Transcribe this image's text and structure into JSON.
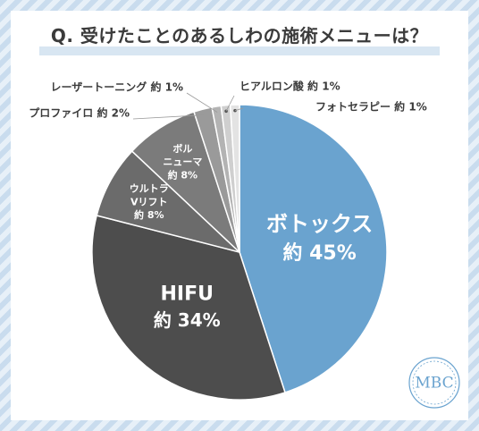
{
  "title": "Q. 受けたことのあるしわの施術メニューは？",
  "logo_text": "MBC",
  "colors": {
    "botox": "#6aa3cf",
    "hifu": "#4d4d4d",
    "ultra": "#6b6b6b",
    "bolnuma": "#7b7b7b",
    "profile": "#9a9a9a",
    "laser": "#b3b3b3",
    "hyaluron": "#cfcfcf",
    "photo": "#e3e3e3"
  },
  "chart_data": {
    "type": "pie",
    "start_angle_deg": 0,
    "direction": "clockwise",
    "slices": [
      {
        "key": "botox",
        "name": "ボトックス",
        "label_lines": [
          "ボトックス"
        ],
        "value": 45,
        "value_label": "約 45%",
        "label_position": "inside"
      },
      {
        "key": "hifu",
        "name": "HIFU",
        "label_lines": [
          "HIFU"
        ],
        "value": 34,
        "value_label": "約 34%",
        "label_position": "inside"
      },
      {
        "key": "ultra",
        "name": "ウルトラVリフト",
        "label_lines": [
          "ウルトラ",
          "Vリフト"
        ],
        "value": 8,
        "value_label": "約 8%",
        "label_position": "inside"
      },
      {
        "key": "bolnuma",
        "name": "ボルニューマ",
        "label_lines": [
          "ボル",
          "ニューマ"
        ],
        "value": 8,
        "value_label": "約 8%",
        "label_position": "inside"
      },
      {
        "key": "profile",
        "name": "プロファイロ",
        "label_lines": [
          "プロファイロ"
        ],
        "value": 2,
        "value_label": "約 2%",
        "label_position": "outside"
      },
      {
        "key": "laser",
        "name": "レーザートーニング",
        "label_lines": [
          "レーザートーニング"
        ],
        "value": 1,
        "value_label": "約 1%",
        "label_position": "outside"
      },
      {
        "key": "hyaluron",
        "name": "ヒアルロン酸",
        "label_lines": [
          "ヒアルロン酸"
        ],
        "value": 1,
        "value_label": "約 1%",
        "label_position": "outside"
      },
      {
        "key": "photo",
        "name": "フォトセラピー",
        "label_lines": [
          "フォトセラピー"
        ],
        "value": 1,
        "value_label": "約 1%",
        "label_position": "outside"
      }
    ]
  }
}
